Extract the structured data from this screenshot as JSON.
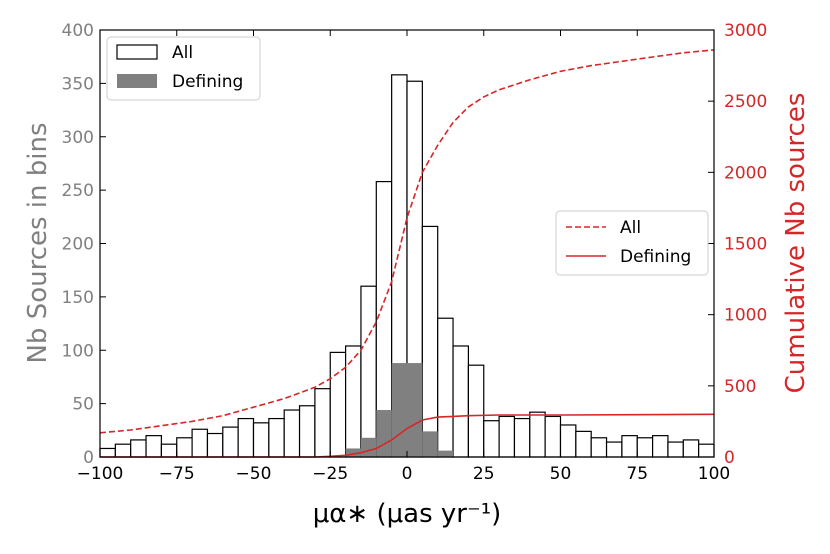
{
  "chart_data": {
    "type": "bar",
    "xlabel": "μα∗ (μas yr⁻¹)",
    "ylabel_left": "Nb Sources in  bins",
    "ylabel_right": "Cumulative Nb sources",
    "xlim": [
      -100,
      100
    ],
    "ylim_left": [
      0,
      400
    ],
    "ylim_right": [
      0,
      3000
    ],
    "x_ticks": [
      -100,
      -75,
      -50,
      -25,
      0,
      25,
      50,
      75,
      100
    ],
    "x_tick_labels": [
      "−100",
      "−75",
      "−50",
      "−25",
      "0",
      "25",
      "50",
      "75",
      "100"
    ],
    "y_ticks_left": [
      0,
      50,
      100,
      150,
      200,
      250,
      300,
      350,
      400
    ],
    "y_tick_labels_left": [
      "0",
      "50",
      "100",
      "150",
      "200",
      "250",
      "300",
      "350",
      "400"
    ],
    "y_ticks_right": [
      0,
      500,
      1000,
      1500,
      2000,
      2500,
      3000
    ],
    "y_tick_labels_right": [
      "0",
      "500",
      "1000",
      "1500",
      "2000",
      "2500",
      "3000"
    ],
    "bin_width": 5,
    "bin_starts": [
      -100,
      -95,
      -90,
      -85,
      -80,
      -75,
      -70,
      -65,
      -60,
      -55,
      -50,
      -45,
      -40,
      -35,
      -30,
      -25,
      -20,
      -15,
      -10,
      -5,
      0,
      5,
      10,
      15,
      20,
      25,
      30,
      35,
      40,
      45,
      50,
      55,
      60,
      65,
      70,
      75,
      80,
      85,
      90,
      95
    ],
    "series": [
      {
        "name": "All",
        "style": "outline-histogram",
        "color": "#000000",
        "values": [
          8,
          12,
          16,
          20,
          12,
          18,
          26,
          22,
          28,
          36,
          32,
          36,
          44,
          48,
          64,
          98,
          104,
          160,
          258,
          358,
          352,
          216,
          130,
          104,
          86,
          34,
          38,
          36,
          42,
          38,
          30,
          24,
          18,
          14,
          20,
          18,
          20,
          14,
          16,
          12
        ]
      },
      {
        "name": "Defining",
        "style": "filled-histogram",
        "color": "#808080",
        "values": [
          0,
          0,
          0,
          0,
          0,
          0,
          0,
          0,
          0,
          0,
          0,
          0,
          0,
          0,
          0,
          0,
          8,
          18,
          44,
          88,
          88,
          24,
          6,
          0,
          0,
          0,
          0,
          0,
          0,
          0,
          0,
          0,
          0,
          0,
          0,
          0,
          0,
          0,
          0,
          0
        ]
      },
      {
        "name": "All",
        "style": "dashed-line",
        "axis": "right",
        "color": "#d62728",
        "x": [
          -100,
          -90,
          -80,
          -70,
          -60,
          -50,
          -40,
          -30,
          -25,
          -20,
          -15,
          -10,
          -5,
          0,
          5,
          10,
          15,
          20,
          25,
          30,
          40,
          50,
          60,
          70,
          80,
          90,
          100
        ],
        "y": [
          170,
          190,
          220,
          250,
          290,
          350,
          410,
          490,
          550,
          630,
          750,
          950,
          1230,
          1680,
          2000,
          2190,
          2350,
          2460,
          2530,
          2580,
          2650,
          2710,
          2750,
          2780,
          2810,
          2840,
          2860
        ]
      },
      {
        "name": "Defining",
        "style": "solid-line",
        "axis": "right",
        "color": "#d62728",
        "x": [
          -100,
          -30,
          -25,
          -20,
          -15,
          -10,
          -5,
          0,
          5,
          10,
          15,
          20,
          30,
          50,
          100
        ],
        "y": [
          0,
          0,
          5,
          12,
          30,
          60,
          120,
          200,
          260,
          280,
          285,
          290,
          295,
          295,
          300
        ]
      }
    ],
    "legend_left": {
      "placement": "top-left",
      "entries": [
        "All",
        "Defining"
      ]
    },
    "legend_right": {
      "placement": "center-right",
      "entries": [
        "All",
        "Defining"
      ]
    },
    "left_axis_color": "#808080",
    "right_axis_color": "#d62728",
    "grid": false
  }
}
